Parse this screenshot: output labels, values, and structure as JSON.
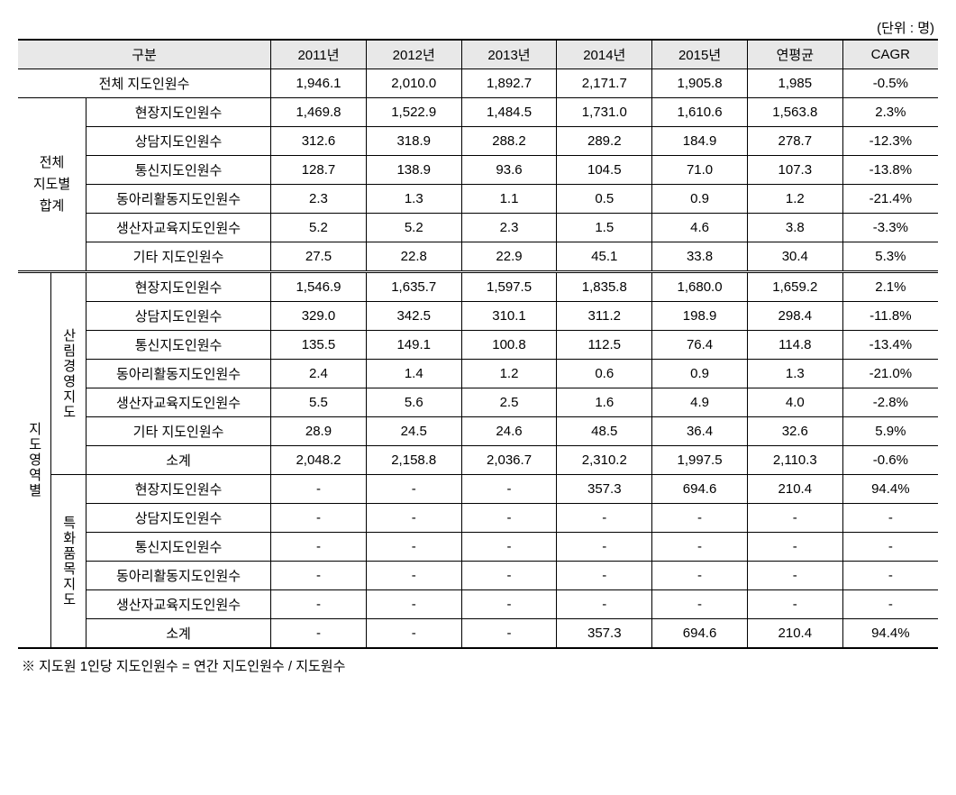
{
  "unit": "(단위 : 명)",
  "headers": {
    "category": "구분",
    "y2011": "2011년",
    "y2012": "2012년",
    "y2013": "2013년",
    "y2014": "2014년",
    "y2015": "2015년",
    "avg": "연평균",
    "cagr": "CAGR"
  },
  "total": {
    "label": "전체 지도인원수",
    "y2011": "1,946.1",
    "y2012": "2,010.0",
    "y2013": "1,892.7",
    "y2014": "2,171.7",
    "y2015": "1,905.8",
    "avg": "1,985",
    "cagr": "-0.5%"
  },
  "groupA": {
    "label": "전체\n지도별\n합계",
    "rows": [
      {
        "label": "현장지도인원수",
        "y2011": "1,469.8",
        "y2012": "1,522.9",
        "y2013": "1,484.5",
        "y2014": "1,731.0",
        "y2015": "1,610.6",
        "avg": "1,563.8",
        "cagr": "2.3%"
      },
      {
        "label": "상담지도인원수",
        "y2011": "312.6",
        "y2012": "318.9",
        "y2013": "288.2",
        "y2014": "289.2",
        "y2015": "184.9",
        "avg": "278.7",
        "cagr": "-12.3%"
      },
      {
        "label": "통신지도인원수",
        "y2011": "128.7",
        "y2012": "138.9",
        "y2013": "93.6",
        "y2014": "104.5",
        "y2015": "71.0",
        "avg": "107.3",
        "cagr": "-13.8%"
      },
      {
        "label": "동아리활동지도인원수",
        "y2011": "2.3",
        "y2012": "1.3",
        "y2013": "1.1",
        "y2014": "0.5",
        "y2015": "0.9",
        "avg": "1.2",
        "cagr": "-21.4%"
      },
      {
        "label": "생산자교육지도인원수",
        "y2011": "5.2",
        "y2012": "5.2",
        "y2013": "2.3",
        "y2014": "1.5",
        "y2015": "4.6",
        "avg": "3.8",
        "cagr": "-3.3%"
      },
      {
        "label": "기타 지도인원수",
        "y2011": "27.5",
        "y2012": "22.8",
        "y2013": "22.9",
        "y2014": "45.1",
        "y2015": "33.8",
        "avg": "30.4",
        "cagr": "5.3%"
      }
    ]
  },
  "groupB": {
    "label": "지도영역별",
    "sub1": {
      "label": "산림경영지도",
      "rows": [
        {
          "label": "현장지도인원수",
          "y2011": "1,546.9",
          "y2012": "1,635.7",
          "y2013": "1,597.5",
          "y2014": "1,835.8",
          "y2015": "1,680.0",
          "avg": "1,659.2",
          "cagr": "2.1%"
        },
        {
          "label": "상담지도인원수",
          "y2011": "329.0",
          "y2012": "342.5",
          "y2013": "310.1",
          "y2014": "311.2",
          "y2015": "198.9",
          "avg": "298.4",
          "cagr": "-11.8%"
        },
        {
          "label": "통신지도인원수",
          "y2011": "135.5",
          "y2012": "149.1",
          "y2013": "100.8",
          "y2014": "112.5",
          "y2015": "76.4",
          "avg": "114.8",
          "cagr": "-13.4%"
        },
        {
          "label": "동아리활동지도인원수",
          "y2011": "2.4",
          "y2012": "1.4",
          "y2013": "1.2",
          "y2014": "0.6",
          "y2015": "0.9",
          "avg": "1.3",
          "cagr": "-21.0%"
        },
        {
          "label": "생산자교육지도인원수",
          "y2011": "5.5",
          "y2012": "5.6",
          "y2013": "2.5",
          "y2014": "1.6",
          "y2015": "4.9",
          "avg": "4.0",
          "cagr": "-2.8%"
        },
        {
          "label": "기타 지도인원수",
          "y2011": "28.9",
          "y2012": "24.5",
          "y2013": "24.6",
          "y2014": "48.5",
          "y2015": "36.4",
          "avg": "32.6",
          "cagr": "5.9%"
        },
        {
          "label": "소계",
          "y2011": "2,048.2",
          "y2012": "2,158.8",
          "y2013": "2,036.7",
          "y2014": "2,310.2",
          "y2015": "1,997.5",
          "avg": "2,110.3",
          "cagr": "-0.6%"
        }
      ]
    },
    "sub2": {
      "label": "특화품목지도",
      "rows": [
        {
          "label": "현장지도인원수",
          "y2011": "-",
          "y2012": "-",
          "y2013": "-",
          "y2014": "357.3",
          "y2015": "694.6",
          "avg": "210.4",
          "cagr": "94.4%"
        },
        {
          "label": "상담지도인원수",
          "y2011": "-",
          "y2012": "-",
          "y2013": "-",
          "y2014": "-",
          "y2015": "-",
          "avg": "-",
          "cagr": "-"
        },
        {
          "label": "통신지도인원수",
          "y2011": "-",
          "y2012": "-",
          "y2013": "-",
          "y2014": "-",
          "y2015": "-",
          "avg": "-",
          "cagr": "-"
        },
        {
          "label": "동아리활동지도인원수",
          "y2011": "-",
          "y2012": "-",
          "y2013": "-",
          "y2014": "-",
          "y2015": "-",
          "avg": "-",
          "cagr": "-"
        },
        {
          "label": "생산자교육지도인원수",
          "y2011": "-",
          "y2012": "-",
          "y2013": "-",
          "y2014": "-",
          "y2015": "-",
          "avg": "-",
          "cagr": "-"
        },
        {
          "label": "소계",
          "y2011": "-",
          "y2012": "-",
          "y2013": "-",
          "y2014": "357.3",
          "y2015": "694.6",
          "avg": "210.4",
          "cagr": "94.4%"
        }
      ]
    }
  },
  "footnote": "※  지도원 1인당 지도인원수 = 연간 지도인원수 / 지도원수",
  "style": {
    "background": "#ffffff",
    "header_bg": "#e8e8e8",
    "border_color": "#000000",
    "text_color": "#000000",
    "font_size": 15
  }
}
